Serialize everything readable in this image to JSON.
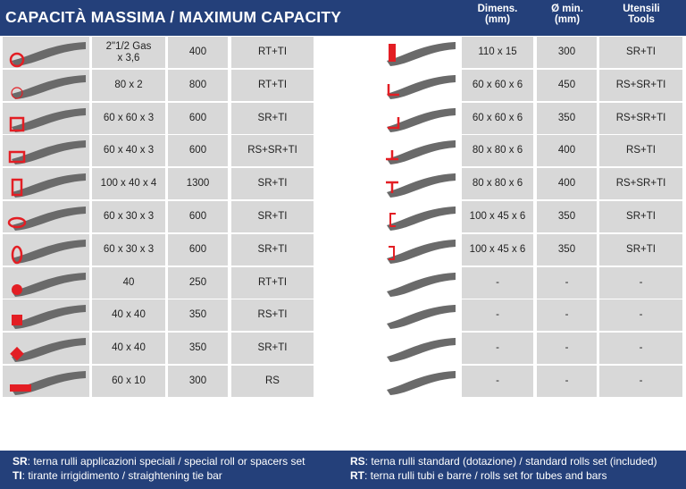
{
  "header": {
    "title": "CAPACITÀ MASSIMA / MAXIMUM CAPACITY",
    "col_dimens": "Dimens.",
    "col_dimens_unit": "(mm)",
    "col_dia": "Ø min.",
    "col_dia_unit": "(mm)",
    "col_tools": "Utensili",
    "col_tools_en": "Tools"
  },
  "left_rows": [
    {
      "dim_line1": "2\"1/2 Gas",
      "dim_line2": "x 3,6",
      "dia": "400",
      "tools": "RT+TI",
      "icon": "round-tube-icon"
    },
    {
      "dim_line1": "80 x 2",
      "dim_line2": "",
      "dia": "800",
      "tools": "RT+TI",
      "icon": "thin-round-tube-icon"
    },
    {
      "dim_line1": "60 x 60 x 3",
      "dim_line2": "",
      "dia": "600",
      "tools": "SR+TI",
      "icon": "square-tube-icon"
    },
    {
      "dim_line1": "60 x 40 x 3",
      "dim_line2": "",
      "dia": "600",
      "tools": "RS+SR+TI",
      "icon": "rect-tube-icon"
    },
    {
      "dim_line1": "100 x 40 x 4",
      "dim_line2": "",
      "dia": "1300",
      "tools": "SR+TI",
      "icon": "tall-rect-tube-icon"
    },
    {
      "dim_line1": "60 x 30 x 3",
      "dim_line2": "",
      "dia": "600",
      "tools": "SR+TI",
      "icon": "oval-tube-flat-icon"
    },
    {
      "dim_line1": "60 x 30 x 3",
      "dim_line2": "",
      "dia": "600",
      "tools": "SR+TI",
      "icon": "oval-tube-upright-icon"
    },
    {
      "dim_line1": "40",
      "dim_line2": "",
      "dia": "250",
      "tools": "RT+TI",
      "icon": "round-bar-icon"
    },
    {
      "dim_line1": "40 x 40",
      "dim_line2": "",
      "dia": "350",
      "tools": "RS+TI",
      "icon": "square-bar-icon"
    },
    {
      "dim_line1": "40 x 40",
      "dim_line2": "",
      "dia": "350",
      "tools": "SR+TI",
      "icon": "diamond-bar-icon"
    },
    {
      "dim_line1": "60 x 10",
      "dim_line2": "",
      "dia": "300",
      "tools": "RS",
      "icon": "flat-bar-icon"
    }
  ],
  "right_rows": [
    {
      "dim": "110 x 15",
      "dia": "300",
      "tools": "SR+TI",
      "icon": "flat-bar-edge-icon"
    },
    {
      "dim": "60 x 60 x 6",
      "dia": "450",
      "tools": "RS+SR+TI",
      "icon": "angle-out-icon"
    },
    {
      "dim": "60 x 60 x 6",
      "dia": "350",
      "tools": "RS+SR+TI",
      "icon": "angle-in-icon"
    },
    {
      "dim": "80 x 80 x 6",
      "dia": "400",
      "tools": "RS+TI",
      "icon": "tee-out-icon"
    },
    {
      "dim": "80 x 80 x 6",
      "dia": "400",
      "tools": "RS+SR+TI",
      "icon": "tee-in-icon"
    },
    {
      "dim": "100 x 45 x 6",
      "dia": "350",
      "tools": "SR+TI",
      "icon": "channel-out-icon"
    },
    {
      "dim": "100 x 45 x 6",
      "dia": "350",
      "tools": "SR+TI",
      "icon": "channel-in-icon"
    },
    {
      "dim": "-",
      "dia": "-",
      "tools": "-",
      "icon": "channel-flat-icon"
    },
    {
      "dim": "-",
      "dia": "-",
      "tools": "-",
      "icon": "channel-up-icon"
    },
    {
      "dim": "-",
      "dia": "-",
      "tools": "-",
      "icon": "ibeam-out-icon"
    },
    {
      "dim": "-",
      "dia": "-",
      "tools": "-",
      "icon": "ibeam-in-icon"
    }
  ],
  "legend": {
    "sr_code": "SR",
    "sr_text": ": terna rulli applicazioni speciali / special roll or spacers set",
    "ti_code": "TI",
    "ti_text": ": tirante irrigidimento / straightening tie bar",
    "rs_code": "RS",
    "rs_text": ": terna rulli standard (dotazione) / standard rolls set (included)",
    "rt_code": "RT",
    "rt_text": ": terna rulli tubi e barre / rolls set for tubes and bars"
  },
  "colors": {
    "header_bg": "#24407a",
    "cell_bg": "#d8d8d8",
    "section_red": "#e31e24",
    "profile_gray": "#6a6a6a"
  }
}
